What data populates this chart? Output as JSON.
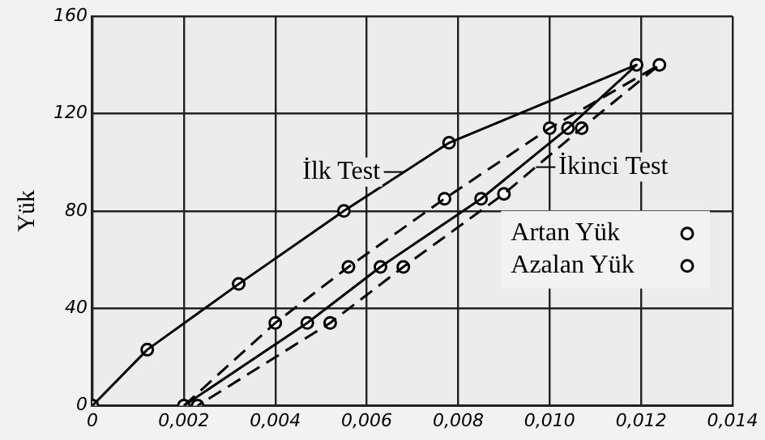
{
  "chart_data": {
    "type": "line",
    "ylabel": "Yük",
    "xlim": [
      0,
      0.014
    ],
    "ylim": [
      0,
      160
    ],
    "xticks": [
      0,
      {
        "value": 0.002,
        "label": "0,002"
      },
      {
        "value": 0.004,
        "label": "0,004"
      },
      {
        "value": 0.006,
        "label": "0,006"
      },
      {
        "value": 0.008,
        "label": "0,008"
      },
      {
        "value": 0.01,
        "label": "0,010"
      },
      {
        "value": 0.012,
        "label": "0,012"
      },
      {
        "value": 0.014,
        "label": "0,014"
      }
    ],
    "yticks": [
      0,
      40,
      80,
      120,
      160
    ],
    "grid": true,
    "legend": "right",
    "series": [
      {
        "color": "#000000",
        "line_style": "solid",
        "marker": "none",
        "x": [
          0,
          0.0012,
          0.0032,
          0.0055,
          0.0078,
          0.0119,
          0.0104,
          0.0085,
          0.0063,
          0.0047,
          0.002
        ],
        "values": [
          0,
          23,
          50,
          80,
          108,
          140,
          114,
          85,
          57,
          34,
          0
        ]
      },
      {
        "color": "#000000",
        "line_style": "dashed",
        "marker": "none",
        "x": [
          0.002,
          0.004,
          0.0056,
          0.0077,
          0.01,
          0.0124,
          0.0107,
          0.009,
          0.0068,
          0.0052,
          0.0023
        ],
        "values": [
          0,
          34,
          57,
          85,
          114,
          140,
          114,
          87,
          57,
          34,
          0
        ]
      },
      {
        "type": "scatter",
        "name": "Artan Yük",
        "color": "#000000",
        "marker": "circle",
        "x": [
          0,
          0.0012,
          0.0032,
          0.0055,
          0.0078,
          0.0119,
          0.004,
          0.0056,
          0.0077,
          0.01,
          0.0124
        ],
        "values": [
          0,
          23,
          50,
          80,
          108,
          140,
          34,
          57,
          85,
          114,
          140
        ]
      },
      {
        "type": "scatter",
        "name": "Azalan Yük",
        "color": "#000000",
        "marker": "circle",
        "x": [
          0.0104,
          0.0085,
          0.0063,
          0.0047,
          0.002,
          0.0107,
          0.009,
          0.0068,
          0.0052,
          0.0023
        ],
        "values": [
          114,
          85,
          57,
          34,
          0,
          114,
          87,
          57,
          34,
          0
        ]
      }
    ],
    "annotations": [
      {
        "text": "İlk Test",
        "x": 0.0068,
        "y": 96
      },
      {
        "text": "İkinci Test",
        "x": 0.0097,
        "y": 98
      }
    ]
  }
}
